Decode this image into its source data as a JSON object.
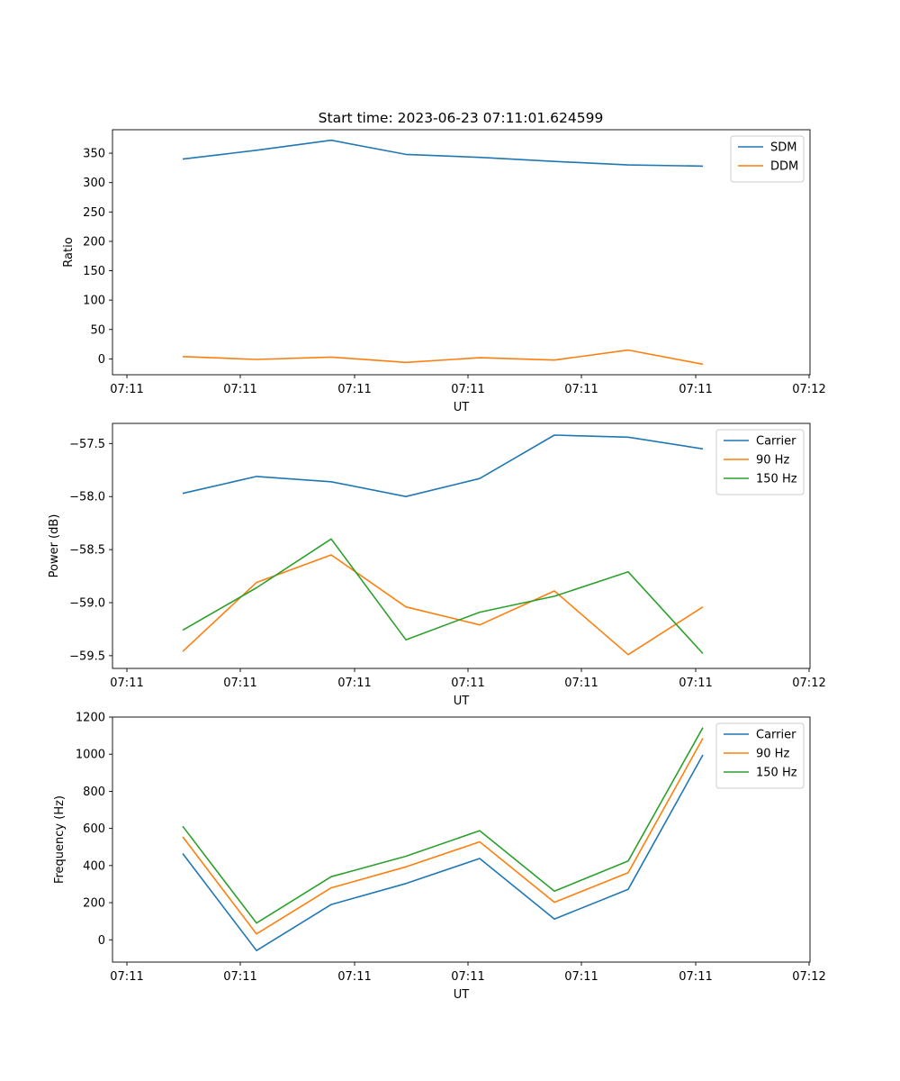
{
  "figure": {
    "title": "Start time: 2023-06-23 07:11:01.624599"
  },
  "colors": {
    "blue": "#1f77b4",
    "orange": "#ff7f0e",
    "green": "#2ca02c"
  },
  "chart_data": [
    {
      "type": "line",
      "title": "Start time: 2023-06-23 07:11:01.624599",
      "xlabel": "UT",
      "ylabel": "Ratio",
      "x_tick_labels": [
        "07:11",
        "07:11",
        "07:11",
        "07:11",
        "07:11",
        "07:11",
        "07:12"
      ],
      "y_ticks": [
        0,
        50,
        100,
        150,
        200,
        250,
        300,
        350
      ],
      "ylim": [
        -27,
        390
      ],
      "legend_placement": "top-right",
      "grid": false,
      "series": [
        {
          "name": "SDM",
          "color": "#1f77b4",
          "values": [
            340,
            355,
            372,
            348,
            343,
            336,
            330,
            328
          ]
        },
        {
          "name": "DDM",
          "color": "#ff7f0e",
          "values": [
            4,
            -1,
            3,
            -6,
            2,
            -2,
            15,
            -9
          ]
        }
      ]
    },
    {
      "type": "line",
      "title": "",
      "xlabel": "UT",
      "ylabel": "Power (dB)",
      "x_tick_labels": [
        "07:11",
        "07:11",
        "07:11",
        "07:11",
        "07:11",
        "07:11",
        "07:12"
      ],
      "y_ticks": [
        -59.5,
        -59.0,
        -58.5,
        -58.0,
        -57.5
      ],
      "y_tick_labels": [
        "−59.5",
        "−59.0",
        "−58.5",
        "−58.0",
        "−57.5"
      ],
      "ylim": [
        -59.62,
        -57.31
      ],
      "legend_placement": "top-right",
      "grid": false,
      "series": [
        {
          "name": "Carrier",
          "color": "#1f77b4",
          "values": [
            -57.97,
            -57.81,
            -57.86,
            -58.0,
            -57.83,
            -57.42,
            -57.44,
            -57.55
          ]
        },
        {
          "name": "90 Hz",
          "color": "#ff7f0e",
          "values": [
            -59.46,
            -58.81,
            -58.55,
            -59.04,
            -59.21,
            -58.89,
            -59.49,
            -59.04
          ]
        },
        {
          "name": "150 Hz",
          "color": "#2ca02c",
          "values": [
            -59.26,
            -58.86,
            -58.4,
            -59.35,
            -59.09,
            -58.94,
            -58.71,
            -59.48
          ]
        }
      ]
    },
    {
      "type": "line",
      "title": "",
      "xlabel": "UT",
      "ylabel": "Frequency (Hz)",
      "x_tick_labels": [
        "07:11",
        "07:11",
        "07:11",
        "07:11",
        "07:11",
        "07:11",
        "07:12"
      ],
      "y_ticks": [
        0,
        200,
        400,
        600,
        800,
        1000,
        1200
      ],
      "ylim": [
        -120,
        1200
      ],
      "legend_placement": "top-right",
      "grid": false,
      "series": [
        {
          "name": "Carrier",
          "color": "#1f77b4",
          "values": [
            465,
            -58,
            190,
            303,
            438,
            112,
            272,
            996
          ]
        },
        {
          "name": "90 Hz",
          "color": "#ff7f0e",
          "values": [
            555,
            32,
            280,
            393,
            528,
            202,
            362,
            1086
          ]
        },
        {
          "name": "150 Hz",
          "color": "#2ca02c",
          "values": [
            612,
            90,
            340,
            450,
            588,
            262,
            425,
            1143
          ]
        }
      ]
    }
  ]
}
